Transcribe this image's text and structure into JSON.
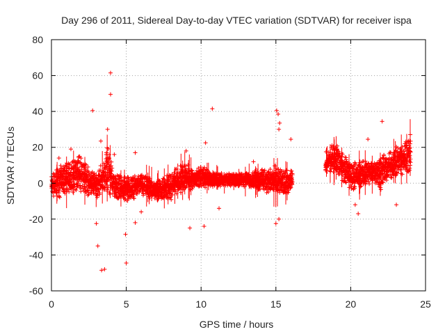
{
  "chart_data": {
    "type": "scatter",
    "title": "Day 296 of 2011, Sidereal Day-to-day VTEC variation (SDTVAR) for receiver ispa",
    "xlabel": "GPS time / hours",
    "ylabel": "SDTVAR / TECUs",
    "xlim": [
      0,
      25
    ],
    "ylim": [
      -60,
      80
    ],
    "x_ticks": [
      0,
      5,
      10,
      15,
      20,
      25
    ],
    "y_ticks": [
      -60,
      -40,
      -20,
      0,
      20,
      40,
      60,
      80
    ],
    "x_tick_labels": [
      "0",
      "5",
      "10",
      "15",
      "20",
      "25"
    ],
    "y_tick_labels": [
      "-60",
      "-40",
      "-20",
      "0",
      "20",
      "40",
      "60",
      "80"
    ],
    "grid": true,
    "marker": "+",
    "color": "#ff0000",
    "data_gap": [
      16.1,
      18.3
    ],
    "band": [
      {
        "x": 0.0,
        "lo": -8,
        "hi": 6
      },
      {
        "x": 0.5,
        "lo": -8,
        "hi": 10
      },
      {
        "x": 1.0,
        "lo": -8,
        "hi": 12
      },
      {
        "x": 1.5,
        "lo": -6,
        "hi": 14
      },
      {
        "x": 2.0,
        "lo": -6,
        "hi": 18
      },
      {
        "x": 2.5,
        "lo": -8,
        "hi": 8
      },
      {
        "x": 3.0,
        "lo": -8,
        "hi": 6
      },
      {
        "x": 3.5,
        "lo": -8,
        "hi": 14
      },
      {
        "x": 3.8,
        "lo": -6,
        "hi": 24
      },
      {
        "x": 4.2,
        "lo": -10,
        "hi": 6
      },
      {
        "x": 5.0,
        "lo": -10,
        "hi": 4
      },
      {
        "x": 6.0,
        "lo": -8,
        "hi": 6
      },
      {
        "x": 7.0,
        "lo": -10,
        "hi": 2
      },
      {
        "x": 8.0,
        "lo": -10,
        "hi": 6
      },
      {
        "x": 8.5,
        "lo": -6,
        "hi": 10
      },
      {
        "x": 9.0,
        "lo": -5,
        "hi": 12
      },
      {
        "x": 9.5,
        "lo": -3,
        "hi": 8
      },
      {
        "x": 10.0,
        "lo": -3,
        "hi": 10
      },
      {
        "x": 11.0,
        "lo": -2,
        "hi": 6
      },
      {
        "x": 12.0,
        "lo": -2,
        "hi": 6
      },
      {
        "x": 13.0,
        "lo": -2,
        "hi": 6
      },
      {
        "x": 14.0,
        "lo": -4,
        "hi": 8
      },
      {
        "x": 15.0,
        "lo": -8,
        "hi": 10
      },
      {
        "x": 15.5,
        "lo": -8,
        "hi": 8
      },
      {
        "x": 16.0,
        "lo": -6,
        "hi": 8
      },
      {
        "x": 18.3,
        "lo": 6,
        "hi": 12
      },
      {
        "x": 18.7,
        "lo": 6,
        "hi": 22
      },
      {
        "x": 19.0,
        "lo": 4,
        "hi": 24
      },
      {
        "x": 19.5,
        "lo": 0,
        "hi": 18
      },
      {
        "x": 20.0,
        "lo": -6,
        "hi": 14
      },
      {
        "x": 20.5,
        "lo": -4,
        "hi": 12
      },
      {
        "x": 21.0,
        "lo": -2,
        "hi": 14
      },
      {
        "x": 21.5,
        "lo": 0,
        "hi": 14
      },
      {
        "x": 22.0,
        "lo": -4,
        "hi": 16
      },
      {
        "x": 22.5,
        "lo": 0,
        "hi": 18
      },
      {
        "x": 23.0,
        "lo": 2,
        "hi": 20
      },
      {
        "x": 23.5,
        "lo": 4,
        "hi": 24
      },
      {
        "x": 24.0,
        "lo": 6,
        "hi": 30
      }
    ],
    "outliers": [
      {
        "x": 3.95,
        "y": 61.5
      },
      {
        "x": 3.95,
        "y": 49.5
      },
      {
        "x": 2.75,
        "y": 40.5
      },
      {
        "x": 10.75,
        "y": 41.5
      },
      {
        "x": 15.05,
        "y": 40.5
      },
      {
        "x": 15.15,
        "y": 38.5
      },
      {
        "x": 15.25,
        "y": 33.5
      },
      {
        "x": 15.2,
        "y": 30
      },
      {
        "x": 3.75,
        "y": 30
      },
      {
        "x": 3.3,
        "y": 23.5
      },
      {
        "x": 10.3,
        "y": 22.5
      },
      {
        "x": 16.0,
        "y": 24.5
      },
      {
        "x": 22.1,
        "y": 34.5
      },
      {
        "x": 21.15,
        "y": 24.5
      },
      {
        "x": 18.35,
        "y": 17.5
      },
      {
        "x": 3.0,
        "y": -22.5
      },
      {
        "x": 3.1,
        "y": -35
      },
      {
        "x": 3.35,
        "y": -48.5
      },
      {
        "x": 3.55,
        "y": -48
      },
      {
        "x": 5.0,
        "y": -44.5
      },
      {
        "x": 4.95,
        "y": -28.5
      },
      {
        "x": 5.6,
        "y": -22
      },
      {
        "x": 9.25,
        "y": -25
      },
      {
        "x": 10.2,
        "y": -24
      },
      {
        "x": 15.0,
        "y": -22.5
      },
      {
        "x": 15.2,
        "y": -20
      },
      {
        "x": 20.5,
        "y": -17
      },
      {
        "x": 20.3,
        "y": -12
      },
      {
        "x": 23.05,
        "y": -12
      },
      {
        "x": 11.2,
        "y": -14
      },
      {
        "x": 6.0,
        "y": -16
      },
      {
        "x": 0.5,
        "y": 14
      },
      {
        "x": 1.3,
        "y": 19
      },
      {
        "x": 5.6,
        "y": 17
      },
      {
        "x": 9.0,
        "y": 18
      },
      {
        "x": 13.5,
        "y": 12
      },
      {
        "x": 4.2,
        "y": 16
      }
    ]
  }
}
